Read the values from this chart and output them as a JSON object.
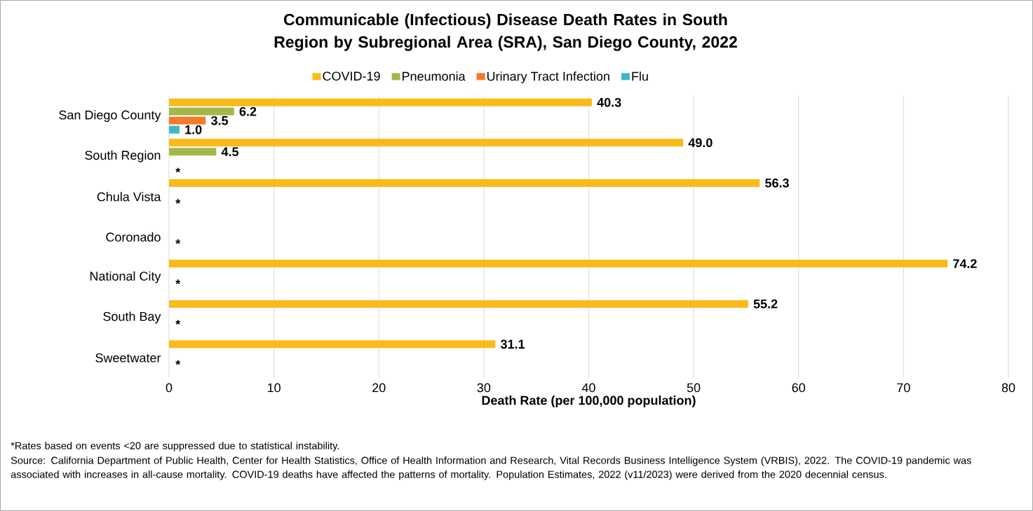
{
  "chart_data": {
    "type": "bar",
    "orientation": "horizontal",
    "title": "Communicable (Infectious) Disease Death Rates in South Region by Subregional Area (SRA), San Diego County, 2022",
    "xlabel": "Death Rate (per 100,000 population)",
    "categories": [
      "San Diego County",
      "South Region",
      "Chula Vista",
      "Coronado",
      "National City",
      "South Bay",
      "Sweetwater"
    ],
    "series": [
      {
        "name": "COVID-19",
        "color": "#fbba1b",
        "values": [
          40.3,
          49.0,
          56.3,
          null,
          74.2,
          55.2,
          31.1
        ],
        "value_labels": [
          "40.3",
          "49.0",
          "56.3",
          null,
          "74.2",
          "55.2",
          "31.1"
        ]
      },
      {
        "name": "Pneumonia",
        "color": "#a3b84a",
        "values": [
          6.2,
          4.5,
          null,
          null,
          null,
          null,
          null
        ],
        "value_labels": [
          "6.2",
          "4.5",
          null,
          null,
          null,
          null,
          null
        ]
      },
      {
        "name": "Urinary Tract Infection",
        "color": "#f47b2a",
        "values": [
          3.5,
          null,
          null,
          null,
          null,
          null,
          null
        ],
        "value_labels": [
          "3.5",
          null,
          "*",
          "*",
          "*",
          "*",
          "*"
        ]
      },
      {
        "name": "Flu",
        "color": "#3cbac8",
        "values": [
          1.0,
          null,
          null,
          null,
          null,
          null,
          null
        ],
        "value_labels": [
          "1.0",
          "*",
          null,
          null,
          null,
          null,
          null
        ]
      }
    ],
    "xlim": [
      0,
      80
    ],
    "xticks": [
      0,
      10,
      20,
      30,
      40,
      50,
      60,
      70,
      80
    ],
    "grid": "x",
    "legend": "top",
    "annotations": [
      "*Rates based on events <20 are suppressed due to statistical instability.",
      "Source: California Department of Public Health, Center for Health Statistics, Office of Health Information and Research, Vital Records Business Intelligence System (VRBIS), 2022. The COVID-19 pandemic was associated with increases in all-cause mortality. COVID-19 deaths have affected the patterns of mortality. Population Estimates, 2022 (v11/2023) were derived from the 2020 decennial census."
    ]
  }
}
